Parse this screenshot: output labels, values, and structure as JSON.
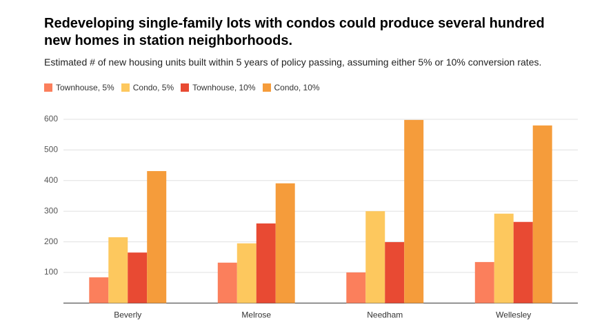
{
  "chart_data": {
    "type": "bar",
    "title": "Redeveloping single-family lots with condos could produce several hundred new homes in station neighborhoods.",
    "subtitle": "Estimated # of new housing units built within 5 years of policy passing, assuming either 5% or 10% conversion rates.",
    "categories": [
      "Beverly",
      "Melrose",
      "Needham",
      "Wellesley"
    ],
    "series": [
      {
        "name": "Townhouse, 5%",
        "color": "#fb7f5c",
        "values": [
          84,
          132,
          100,
          134
        ]
      },
      {
        "name": "Condo, 5%",
        "color": "#fdc85e",
        "values": [
          215,
          195,
          300,
          292
        ]
      },
      {
        "name": "Townhouse, 10%",
        "color": "#e84a33",
        "values": [
          165,
          260,
          199,
          265
        ]
      },
      {
        "name": "Condo, 10%",
        "color": "#f59c3b",
        "values": [
          431,
          391,
          598,
          580
        ]
      }
    ],
    "ylim": [
      0,
      600
    ],
    "yticks": [
      100,
      200,
      300,
      400,
      500,
      600
    ],
    "grid": true,
    "legend": "top"
  }
}
